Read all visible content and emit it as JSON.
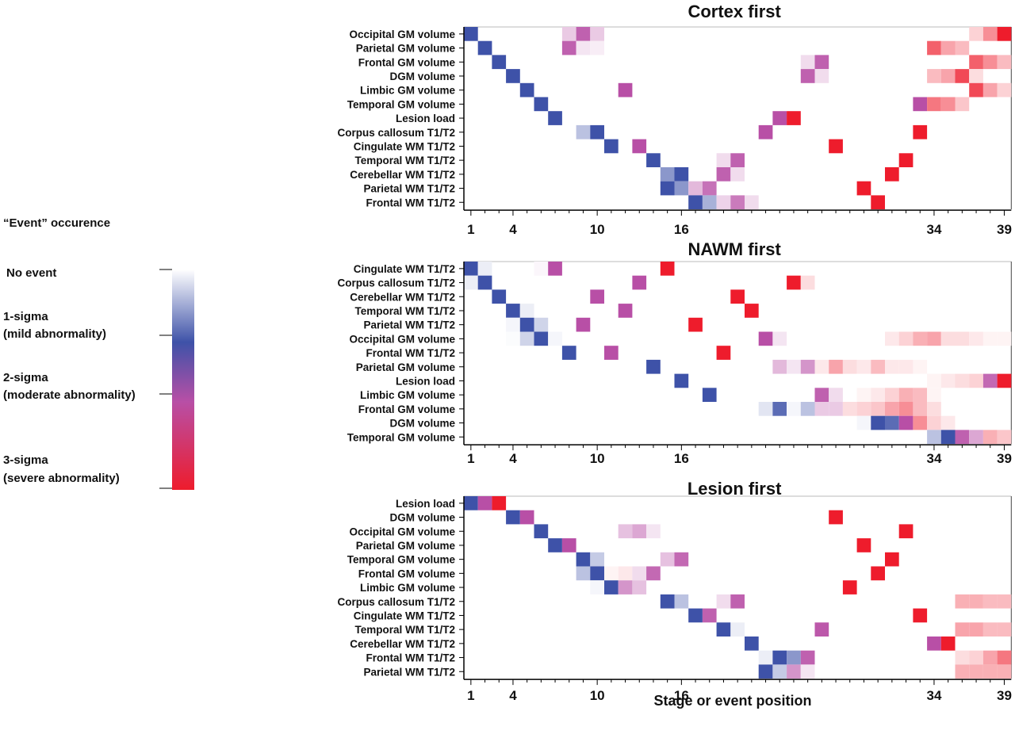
{
  "legend": {
    "title": "“Event” occurence",
    "levels": [
      {
        "label": "No event",
        "sub": ""
      },
      {
        "label": "1-sigma",
        "sub": "(mild abnormality)"
      },
      {
        "label": "2-sigma",
        "sub": "(moderate abnormality)"
      },
      {
        "label": "3-sigma",
        "sub": "(severe abnormality)"
      }
    ]
  },
  "xlabel": "Stage or event position",
  "chart_data": [
    {
      "type": "heatmap",
      "title": "Cortex first",
      "x_range": [
        1,
        39
      ],
      "xticks": [
        1,
        4,
        10,
        16,
        34,
        39
      ],
      "rows": [
        "Occipital GM volume",
        "Parietal GM volume",
        "Frontal GM volume",
        "DGM volume",
        "Limbic GM volume",
        "Temporal GM volume",
        "Lesion load",
        "Corpus callosum T1/T2",
        "Cingulate WM T1/T2",
        "Temporal WM T1/T2",
        "Cerebellar WM T1/T2",
        "Parietal WM T1/T2",
        "Frontal WM T1/T2"
      ],
      "cells": [
        [
          [
            1,
            1,
            1
          ],
          [
            8,
            2,
            0.3
          ],
          [
            9,
            2,
            0.9
          ],
          [
            10,
            2,
            0.3
          ],
          [
            37,
            3,
            0.2
          ],
          [
            38,
            3,
            0.5
          ],
          [
            39,
            3,
            1
          ]
        ],
        [
          [
            2,
            1,
            1
          ],
          [
            8,
            2,
            0.9
          ],
          [
            9,
            2,
            0.15
          ],
          [
            10,
            2,
            0.1
          ],
          [
            34,
            3,
            0.7
          ],
          [
            35,
            3,
            0.4
          ],
          [
            36,
            3,
            0.3
          ]
        ],
        [
          [
            3,
            1,
            1
          ],
          [
            25,
            2,
            0.2
          ],
          [
            26,
            2,
            0.9
          ],
          [
            37,
            3,
            0.7
          ],
          [
            38,
            3,
            0.5
          ],
          [
            39,
            3,
            0.3
          ]
        ],
        [
          [
            4,
            1,
            1
          ],
          [
            25,
            2,
            0.9
          ],
          [
            26,
            2,
            0.2
          ],
          [
            34,
            3,
            0.3
          ],
          [
            35,
            3,
            0.4
          ],
          [
            36,
            3,
            0.8
          ],
          [
            37,
            3,
            0.15
          ]
        ],
        [
          [
            5,
            1,
            1
          ],
          [
            12,
            2,
            1
          ],
          [
            37,
            3,
            0.8
          ],
          [
            38,
            3,
            0.4
          ],
          [
            39,
            3,
            0.2
          ]
        ],
        [
          [
            6,
            1,
            1
          ],
          [
            33,
            2,
            1
          ],
          [
            34,
            3,
            0.6
          ],
          [
            35,
            3,
            0.5
          ],
          [
            36,
            3,
            0.25
          ]
        ],
        [
          [
            7,
            1,
            1
          ],
          [
            23,
            2,
            1
          ],
          [
            24,
            3,
            1
          ]
        ],
        [
          [
            9,
            1,
            0.35
          ],
          [
            10,
            1,
            1
          ],
          [
            22,
            2,
            1
          ],
          [
            33,
            3,
            1
          ]
        ],
        [
          [
            11,
            1,
            1
          ],
          [
            13,
            2,
            1
          ],
          [
            27,
            3,
            1
          ]
        ],
        [
          [
            14,
            1,
            1
          ],
          [
            19,
            2,
            0.2
          ],
          [
            20,
            2,
            0.9
          ],
          [
            32,
            3,
            1
          ]
        ],
        [
          [
            15,
            1,
            0.6
          ],
          [
            16,
            1,
            1
          ],
          [
            19,
            2,
            0.9
          ],
          [
            20,
            2,
            0.2
          ],
          [
            31,
            3,
            1
          ]
        ],
        [
          [
            15,
            1,
            1
          ],
          [
            16,
            1,
            0.6
          ],
          [
            17,
            2,
            0.4
          ],
          [
            18,
            2,
            0.8
          ],
          [
            29,
            3,
            1
          ]
        ],
        [
          [
            17,
            1,
            1
          ],
          [
            18,
            1,
            0.45
          ],
          [
            19,
            2,
            0.25
          ],
          [
            20,
            2,
            0.75
          ],
          [
            21,
            2,
            0.2
          ],
          [
            30,
            3,
            1
          ]
        ]
      ]
    },
    {
      "type": "heatmap",
      "title": "NAWM first",
      "x_range": [
        1,
        39
      ],
      "xticks": [
        1,
        4,
        10,
        16,
        34,
        39
      ],
      "rows": [
        "Cingulate WM T1/T2",
        "Corpus callosum T1/T2",
        "Cerebellar WM T1/T2",
        "Temporal WM T1/T2",
        "Parietal WM T1/T2",
        "Occipital GM volume",
        "Frontal WM T1/T2",
        "Parietal GM volume",
        "Lesion load",
        "Limbic GM volume",
        "Frontal GM volume",
        "DGM volume",
        "Temporal GM volume"
      ],
      "cells": [
        [
          [
            1,
            1,
            1
          ],
          [
            2,
            1,
            0.1
          ],
          [
            6,
            2,
            0.05
          ],
          [
            7,
            2,
            1
          ],
          [
            15,
            3,
            1
          ]
        ],
        [
          [
            1,
            1,
            0.1
          ],
          [
            2,
            1,
            1
          ],
          [
            13,
            2,
            1
          ],
          [
            24,
            3,
            1
          ],
          [
            25,
            3,
            0.15
          ]
        ],
        [
          [
            3,
            1,
            1
          ],
          [
            10,
            2,
            1
          ],
          [
            20,
            3,
            1
          ]
        ],
        [
          [
            4,
            1,
            1
          ],
          [
            5,
            1,
            0.1
          ],
          [
            12,
            2,
            1
          ],
          [
            21,
            3,
            1
          ]
        ],
        [
          [
            4,
            1,
            0.05
          ],
          [
            5,
            1,
            1
          ],
          [
            6,
            1,
            0.25
          ],
          [
            9,
            2,
            1
          ],
          [
            17,
            3,
            1
          ]
        ],
        [
          [
            4,
            1,
            0.02
          ],
          [
            5,
            1,
            0.25
          ],
          [
            6,
            1,
            1
          ],
          [
            7,
            1,
            0.05
          ],
          [
            22,
            2,
            1
          ],
          [
            23,
            2,
            0.15
          ],
          [
            31,
            3,
            0.1
          ],
          [
            32,
            3,
            0.2
          ],
          [
            33,
            3,
            0.35
          ],
          [
            34,
            3,
            0.4
          ],
          [
            35,
            3,
            0.15
          ],
          [
            36,
            3,
            0.15
          ],
          [
            37,
            3,
            0.1
          ],
          [
            38,
            3,
            0.05
          ],
          [
            39,
            3,
            0.05
          ]
        ],
        [
          [
            8,
            1,
            1
          ],
          [
            11,
            2,
            1
          ],
          [
            19,
            3,
            1
          ]
        ],
        [
          [
            14,
            1,
            1
          ],
          [
            23,
            2,
            0.4
          ],
          [
            24,
            2,
            0.15
          ],
          [
            25,
            2,
            0.6
          ],
          [
            26,
            3,
            0.1
          ],
          [
            27,
            3,
            0.4
          ],
          [
            28,
            3,
            0.15
          ],
          [
            29,
            3,
            0.1
          ],
          [
            30,
            3,
            0.3
          ],
          [
            31,
            3,
            0.1
          ],
          [
            32,
            3,
            0.1
          ],
          [
            33,
            3,
            0.05
          ]
        ],
        [
          [
            16,
            1,
            1
          ],
          [
            34,
            3,
            0.05
          ],
          [
            35,
            3,
            0.1
          ],
          [
            36,
            3,
            0.15
          ],
          [
            37,
            3,
            0.2
          ],
          [
            38,
            2,
            0.85
          ],
          [
            39,
            3,
            1
          ]
        ],
        [
          [
            18,
            1,
            1
          ],
          [
            26,
            2,
            0.9
          ],
          [
            27,
            2,
            0.2
          ],
          [
            29,
            3,
            0.05
          ],
          [
            30,
            3,
            0.1
          ],
          [
            31,
            3,
            0.2
          ],
          [
            32,
            3,
            0.35
          ],
          [
            33,
            3,
            0.3
          ],
          [
            34,
            3,
            0.05
          ]
        ],
        [
          [
            22,
            1,
            0.15
          ],
          [
            23,
            1,
            0.85
          ],
          [
            24,
            1,
            0.05
          ],
          [
            25,
            1,
            0.35
          ],
          [
            26,
            2,
            0.3
          ],
          [
            27,
            2,
            0.3
          ],
          [
            28,
            3,
            0.15
          ],
          [
            29,
            3,
            0.2
          ],
          [
            30,
            3,
            0.25
          ],
          [
            31,
            3,
            0.4
          ],
          [
            32,
            3,
            0.5
          ],
          [
            33,
            3,
            0.3
          ],
          [
            34,
            3,
            0.15
          ]
        ],
        [
          [
            29,
            1,
            0.05
          ],
          [
            30,
            1,
            1
          ],
          [
            31,
            1,
            0.85
          ],
          [
            32,
            2,
            1
          ],
          [
            33,
            3,
            0.5
          ],
          [
            34,
            3,
            0.2
          ],
          [
            35,
            3,
            0.1
          ]
        ],
        [
          [
            34,
            1,
            0.35
          ],
          [
            35,
            1,
            1
          ],
          [
            36,
            2,
            0.9
          ],
          [
            37,
            2,
            0.5
          ],
          [
            38,
            3,
            0.35
          ],
          [
            39,
            3,
            0.25
          ]
        ]
      ]
    },
    {
      "type": "heatmap",
      "title": "Lesion first",
      "x_range": [
        1,
        39
      ],
      "xticks": [
        1,
        4,
        10,
        16,
        34,
        39
      ],
      "rows": [
        "Lesion load",
        "DGM volume",
        "Occipital GM volume",
        "Parietal GM volume",
        "Temporal GM volume",
        "Frontal GM volume",
        "Limbic GM volume",
        "Corpus callosum T1/T2",
        "Cingulate WM T1/T2",
        "Temporal WM T1/T2",
        "Cerebellar WM T1/T2",
        "Frontal WM T1/T2",
        "Parietal WM T1/T2"
      ],
      "cells": [
        [
          [
            1,
            1,
            1
          ],
          [
            2,
            2,
            1
          ],
          [
            3,
            3,
            1
          ]
        ],
        [
          [
            4,
            1,
            1
          ],
          [
            5,
            2,
            1
          ],
          [
            27,
            3,
            1
          ]
        ],
        [
          [
            6,
            1,
            1
          ],
          [
            12,
            2,
            0.35
          ],
          [
            13,
            2,
            0.5
          ],
          [
            14,
            2,
            0.15
          ],
          [
            32,
            3,
            1
          ]
        ],
        [
          [
            7,
            1,
            1
          ],
          [
            8,
            2,
            1
          ],
          [
            29,
            3,
            1
          ]
        ],
        [
          [
            9,
            1,
            1
          ],
          [
            10,
            1,
            0.3
          ],
          [
            15,
            2,
            0.35
          ],
          [
            16,
            2,
            0.85
          ],
          [
            31,
            3,
            1
          ]
        ],
        [
          [
            9,
            1,
            0.35
          ],
          [
            10,
            1,
            1
          ],
          [
            11,
            3,
            0.05
          ],
          [
            12,
            3,
            0.1
          ],
          [
            13,
            2,
            0.2
          ],
          [
            14,
            2,
            0.85
          ],
          [
            30,
            3,
            1
          ]
        ],
        [
          [
            10,
            1,
            0.05
          ],
          [
            11,
            1,
            1
          ],
          [
            12,
            2,
            0.6
          ],
          [
            13,
            2,
            0.35
          ],
          [
            28,
            3,
            1
          ]
        ],
        [
          [
            15,
            1,
            1
          ],
          [
            16,
            1,
            0.35
          ],
          [
            19,
            2,
            0.2
          ],
          [
            20,
            2,
            0.9
          ],
          [
            36,
            3,
            0.35
          ],
          [
            37,
            3,
            0.35
          ],
          [
            38,
            3,
            0.3
          ],
          [
            39,
            3,
            0.3
          ]
        ],
        [
          [
            17,
            1,
            1
          ],
          [
            18,
            2,
            0.9
          ],
          [
            33,
            3,
            1
          ]
        ],
        [
          [
            19,
            1,
            1
          ],
          [
            20,
            1,
            0.1
          ],
          [
            26,
            2,
            0.95
          ],
          [
            36,
            3,
            0.4
          ],
          [
            37,
            3,
            0.4
          ],
          [
            38,
            3,
            0.3
          ],
          [
            39,
            3,
            0.3
          ]
        ],
        [
          [
            21,
            1,
            1
          ],
          [
            34,
            2,
            1
          ],
          [
            35,
            3,
            1
          ]
        ],
        [
          [
            22,
            1,
            0.1
          ],
          [
            23,
            1,
            1
          ],
          [
            24,
            1,
            0.6
          ],
          [
            25,
            2,
            0.9
          ],
          [
            36,
            3,
            0.15
          ],
          [
            37,
            3,
            0.2
          ],
          [
            38,
            3,
            0.4
          ],
          [
            39,
            3,
            0.6
          ]
        ],
        [
          [
            22,
            1,
            1
          ],
          [
            23,
            1,
            0.3
          ],
          [
            24,
            2,
            0.6
          ],
          [
            25,
            2,
            0.15
          ],
          [
            36,
            3,
            0.35
          ],
          [
            37,
            3,
            0.35
          ],
          [
            38,
            3,
            0.35
          ],
          [
            39,
            3,
            0.35
          ]
        ]
      ]
    }
  ]
}
